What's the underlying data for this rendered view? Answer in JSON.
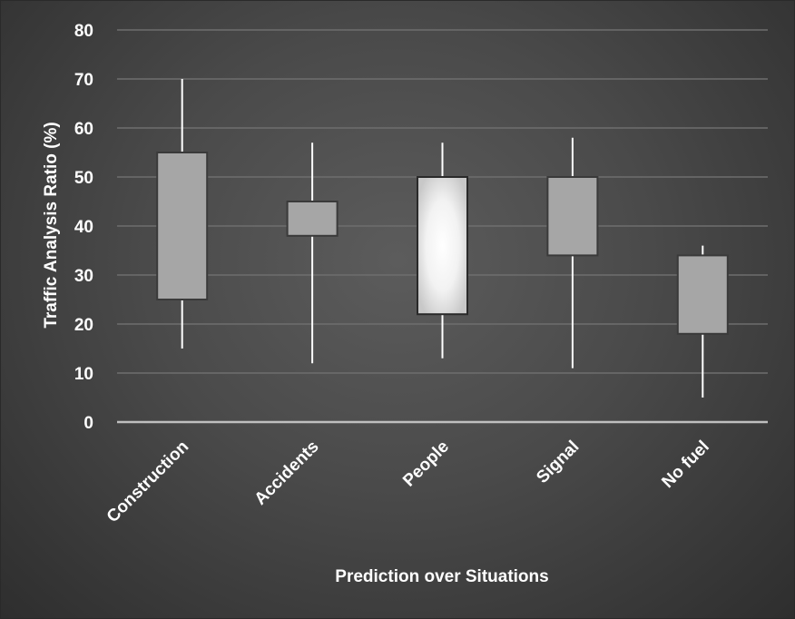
{
  "chart_data": {
    "type": "box",
    "title": "",
    "xlabel": "Prediction over Situations",
    "ylabel": "Traffic Analysis Ratio (%)",
    "ylim": [
      0,
      80
    ],
    "yticks": [
      "0",
      "10",
      "20",
      "30",
      "40",
      "50",
      "60",
      "70",
      "80"
    ],
    "grid": true,
    "categories": [
      "Construction",
      "Accidents",
      "People",
      "Signal",
      "No fuel"
    ],
    "series": [
      {
        "category": "Construction",
        "min": 15,
        "q1": 25,
        "q3": 55,
        "max": 70,
        "highlight": false
      },
      {
        "category": "Accidents",
        "min": 12,
        "q1": 38,
        "q3": 45,
        "max": 57,
        "highlight": false
      },
      {
        "category": "People",
        "min": 13,
        "q1": 22,
        "q3": 50,
        "max": 57,
        "highlight": true
      },
      {
        "category": "Signal",
        "min": 11,
        "q1": 34,
        "q3": 50,
        "max": 58,
        "highlight": false
      },
      {
        "category": "No fuel",
        "min": 5,
        "q1": 18,
        "q3": 34,
        "max": 36,
        "highlight": false
      }
    ],
    "colors": {
      "box_fill": "#a6a6a6",
      "box_stroke": "#3a3a3a",
      "highlight_center": "#ffffff",
      "highlight_edge": "#c8c8c8",
      "whisker": "#ffffff",
      "gridline": "#6e6e6e",
      "axis_line": "#bfbfbf",
      "text": "#ffffff"
    }
  }
}
